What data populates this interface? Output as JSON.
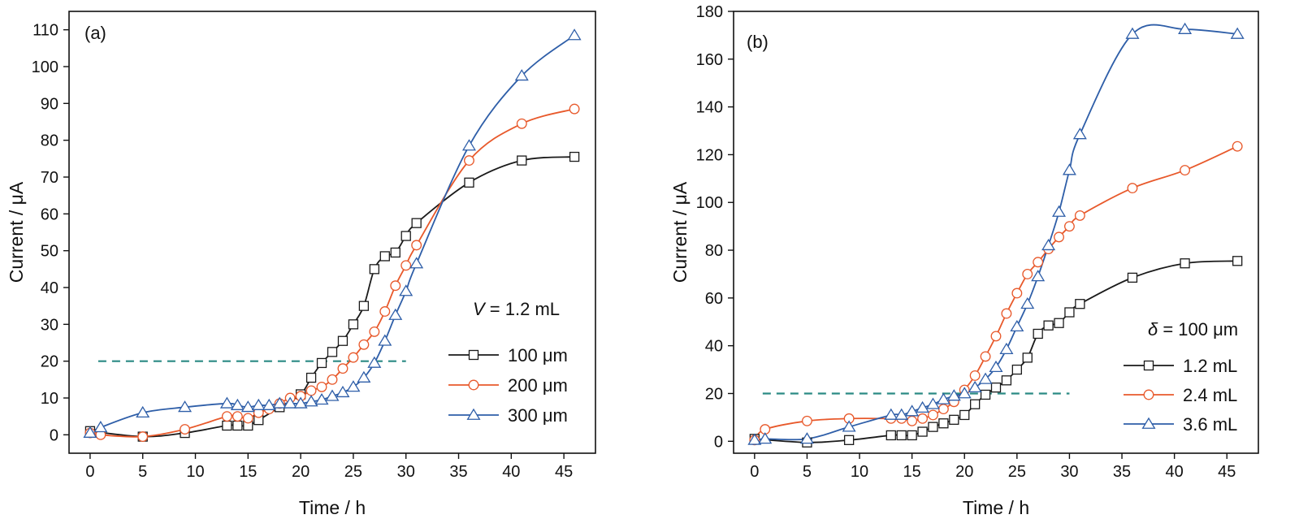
{
  "chart_data": [
    {
      "type": "line",
      "panel_label": "(a)",
      "xlabel": "Time / h",
      "ylabel": "Current / μA",
      "xlim": [
        -2,
        48
      ],
      "ylim": [
        -5,
        115
      ],
      "xticks": [
        0,
        5,
        10,
        15,
        20,
        25,
        30,
        35,
        40,
        45
      ],
      "yticks": [
        0,
        10,
        20,
        30,
        40,
        50,
        60,
        70,
        80,
        90,
        100,
        110
      ],
      "legend_title": "V = 1.2 mL",
      "legend_title_italic": "V",
      "legend_title_rest": " = 1.2 mL",
      "legend_position": "lower right",
      "threshold": {
        "y": 20,
        "x_range": [
          0,
          30
        ],
        "color": "#2a8a84"
      },
      "series": [
        {
          "name": "100 μm",
          "marker": "square",
          "color": "#1a1a1a",
          "x": [
            0,
            5,
            9,
            13,
            14,
            15,
            16,
            18,
            20,
            21,
            22,
            23,
            24,
            25,
            26,
            27,
            28,
            29,
            30,
            31,
            36,
            41,
            46
          ],
          "y": [
            1,
            -0.5,
            0.5,
            2.5,
            2.5,
            2.5,
            4,
            7.5,
            11,
            15.5,
            19.5,
            22.5,
            25.5,
            30,
            35,
            45,
            48.5,
            49.5,
            54,
            57.5,
            68.5,
            74.5,
            75.5
          ]
        },
        {
          "name": "200 μm",
          "marker": "circle",
          "color": "#e8592b",
          "x": [
            0,
            1,
            5,
            9,
            13,
            14,
            15,
            16,
            17,
            18,
            19,
            20,
            21,
            22,
            23,
            24,
            25,
            26,
            27,
            28,
            29,
            30,
            31,
            36,
            41,
            46
          ],
          "y": [
            0.5,
            0,
            -0.5,
            1.5,
            5,
            5,
            4.5,
            6,
            7,
            8.5,
            10,
            10.5,
            12,
            13,
            15,
            18,
            21,
            24.5,
            28,
            33.5,
            40.5,
            46,
            51.5,
            74.5,
            84.5,
            88.5
          ]
        },
        {
          "name": "300 μm",
          "marker": "triangle",
          "color": "#2e5ea8",
          "x": [
            0,
            1,
            5,
            9,
            13,
            14,
            15,
            16,
            17,
            18,
            19,
            20,
            21,
            22,
            23,
            24,
            25,
            26,
            27,
            28,
            29,
            30,
            31,
            36,
            41,
            46
          ],
          "y": [
            0.5,
            2,
            6,
            7.5,
            8.5,
            8,
            7.5,
            8,
            8,
            8.5,
            8.5,
            8.5,
            9,
            9.5,
            10.5,
            11.5,
            13,
            15.5,
            19.5,
            25.5,
            32.5,
            39,
            46.5,
            78.5,
            97.5,
            108.5
          ]
        }
      ]
    },
    {
      "type": "line",
      "panel_label": "(b)",
      "xlabel": "Time / h",
      "ylabel": "Current / μA",
      "xlim": [
        -2,
        48
      ],
      "ylim": [
        -5,
        180
      ],
      "xticks": [
        0,
        5,
        10,
        15,
        20,
        25,
        30,
        35,
        40,
        45
      ],
      "yticks": [
        0,
        20,
        40,
        60,
        80,
        100,
        120,
        140,
        160,
        180
      ],
      "legend_title": "δ = 100 μm",
      "legend_title_italic": "δ",
      "legend_title_rest": " = 100 μm",
      "legend_position": "lower right",
      "threshold": {
        "y": 20,
        "x_range": [
          0,
          30
        ],
        "color": "#2a8a84"
      },
      "series": [
        {
          "name": "1.2 mL",
          "marker": "square",
          "color": "#1a1a1a",
          "x": [
            0,
            5,
            9,
            13,
            14,
            15,
            16,
            17,
            18,
            19,
            20,
            21,
            22,
            23,
            24,
            25,
            26,
            27,
            28,
            29,
            30,
            31,
            36,
            41,
            46
          ],
          "y": [
            1,
            -0.5,
            0.5,
            2.5,
            2.5,
            2.5,
            4,
            6,
            7.5,
            9,
            11,
            15.5,
            19.5,
            22.5,
            25.5,
            30,
            35,
            45,
            48.5,
            49.5,
            54,
            57.5,
            68.5,
            74.5,
            75.5
          ]
        },
        {
          "name": "2.4 mL",
          "marker": "circle",
          "color": "#e8592b",
          "x": [
            0,
            1,
            5,
            9,
            13,
            14,
            15,
            16,
            17,
            18,
            19,
            20,
            21,
            22,
            23,
            24,
            25,
            26,
            27,
            28,
            29,
            30,
            31,
            36,
            41,
            46
          ],
          "y": [
            0.5,
            5,
            8.5,
            9.5,
            9.5,
            9.5,
            8.5,
            9.5,
            11,
            13.5,
            16.5,
            21.5,
            27.5,
            35.5,
            44,
            53.5,
            62,
            70,
            75,
            80.5,
            85.5,
            90,
            94.5,
            106,
            113.5,
            123.5
          ]
        },
        {
          "name": "3.6 mL",
          "marker": "triangle",
          "color": "#2e5ea8",
          "x": [
            0,
            1,
            5,
            9,
            13,
            14,
            15,
            16,
            17,
            18,
            19,
            20,
            21,
            22,
            23,
            24,
            25,
            26,
            27,
            28,
            29,
            30,
            31,
            36,
            41,
            46
          ],
          "y": [
            0.5,
            1,
            1,
            6,
            11,
            11,
            12.5,
            14,
            15.5,
            17.5,
            19,
            20,
            22.5,
            26,
            31,
            38.5,
            48,
            57.5,
            69,
            82,
            96,
            113.5,
            128.5,
            170.5,
            172.5,
            170.5
          ]
        }
      ]
    }
  ]
}
